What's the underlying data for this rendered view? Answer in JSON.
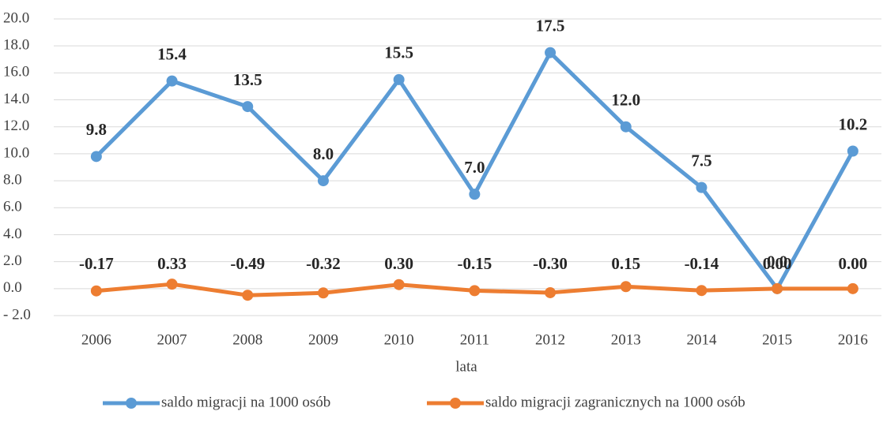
{
  "chart_data": {
    "type": "line",
    "x_label": "lata",
    "categories": [
      "2006",
      "2007",
      "2008",
      "2009",
      "2010",
      "2011",
      "2012",
      "2013",
      "2014",
      "2015",
      "2016"
    ],
    "series": [
      {
        "name": "saldo migracji na 1000 osób",
        "color": "#5b9bd5",
        "values": [
          9.8,
          15.4,
          13.5,
          8.0,
          15.5,
          7.0,
          17.5,
          12.0,
          7.5,
          0.0,
          10.2
        ],
        "value_labels": [
          "9.8",
          "15.4",
          "13.5",
          "8.0",
          "15.5",
          "7.0",
          "17.5",
          "12.0",
          "7.5",
          "0.0",
          "10.2"
        ]
      },
      {
        "name": "saldo migracji zagranicznych na 1000 osób",
        "color": "#ed7d31",
        "values": [
          -0.17,
          0.33,
          -0.49,
          -0.32,
          0.3,
          -0.15,
          -0.3,
          0.15,
          -0.14,
          0.0,
          0.0
        ],
        "value_labels": [
          "-0.17",
          "0.33",
          "-0.49",
          "-0.32",
          "0.30",
          "-0.15",
          "-0.30",
          "0.15",
          "-0.14",
          "0.00",
          "0.00"
        ]
      }
    ],
    "ylim": [
      -2,
      20
    ],
    "yticks": [
      {
        "value": -2,
        "label": "- 2.0"
      },
      {
        "value": 0,
        "label": "0.0"
      },
      {
        "value": 2,
        "label": "2.0"
      },
      {
        "value": 4,
        "label": "4.0"
      },
      {
        "value": 6,
        "label": "6.0"
      },
      {
        "value": 8,
        "label": "8.0"
      },
      {
        "value": 10,
        "label": "10.0"
      },
      {
        "value": 12,
        "label": "12.0"
      },
      {
        "value": 14,
        "label": "14.0"
      },
      {
        "value": 16,
        "label": "16.0"
      },
      {
        "value": 18,
        "label": "18.0"
      },
      {
        "value": 20,
        "label": "20.0"
      }
    ],
    "grid": true,
    "legend": "bottom"
  }
}
